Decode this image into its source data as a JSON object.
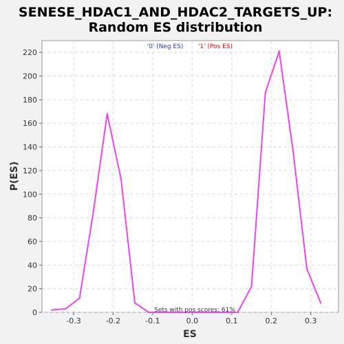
{
  "chart_data": {
    "type": "line",
    "title_line1": "SENESE_HDAC1_AND_HDAC2_TARGETS_UP:",
    "title_line2": "Random ES distribution",
    "xlabel": "ES",
    "ylabel": "P(ES)",
    "xlim": [
      -0.38,
      0.37
    ],
    "ylim": [
      0,
      230
    ],
    "x_ticks": [
      -0.3,
      -0.2,
      -0.1,
      0.0,
      0.1,
      0.2,
      0.3
    ],
    "x_tick_labels": [
      "-0.3",
      "-0.2",
      "-0.1",
      "0.0",
      "0.1",
      "0.2",
      "0.3"
    ],
    "y_ticks": [
      0,
      20,
      40,
      60,
      80,
      100,
      120,
      140,
      160,
      180,
      200,
      220
    ],
    "y_tick_labels": [
      "0",
      "20",
      "40",
      "60",
      "80",
      "100",
      "120",
      "140",
      "160",
      "180",
      "200",
      "220"
    ],
    "grid": true,
    "legend": [
      {
        "label": "'0' (Neg ES)",
        "color": "#3333cc"
      },
      {
        "label": "'1' (Pos ES)",
        "color": "#ff0000"
      }
    ],
    "annotation": "Sets with pos scores: 61%",
    "line_color": "#ee44ee",
    "series": [
      {
        "x": [
          -0.355,
          -0.32,
          -0.285,
          -0.25,
          -0.215,
          -0.18,
          -0.145,
          -0.11,
          -0.075,
          0.115,
          0.15,
          0.185,
          0.22,
          0.255,
          0.29,
          0.325
        ],
        "values": [
          2,
          3,
          12,
          85,
          168,
          113,
          8,
          0,
          0,
          0,
          22,
          186,
          221,
          137,
          37,
          8
        ]
      }
    ]
  }
}
